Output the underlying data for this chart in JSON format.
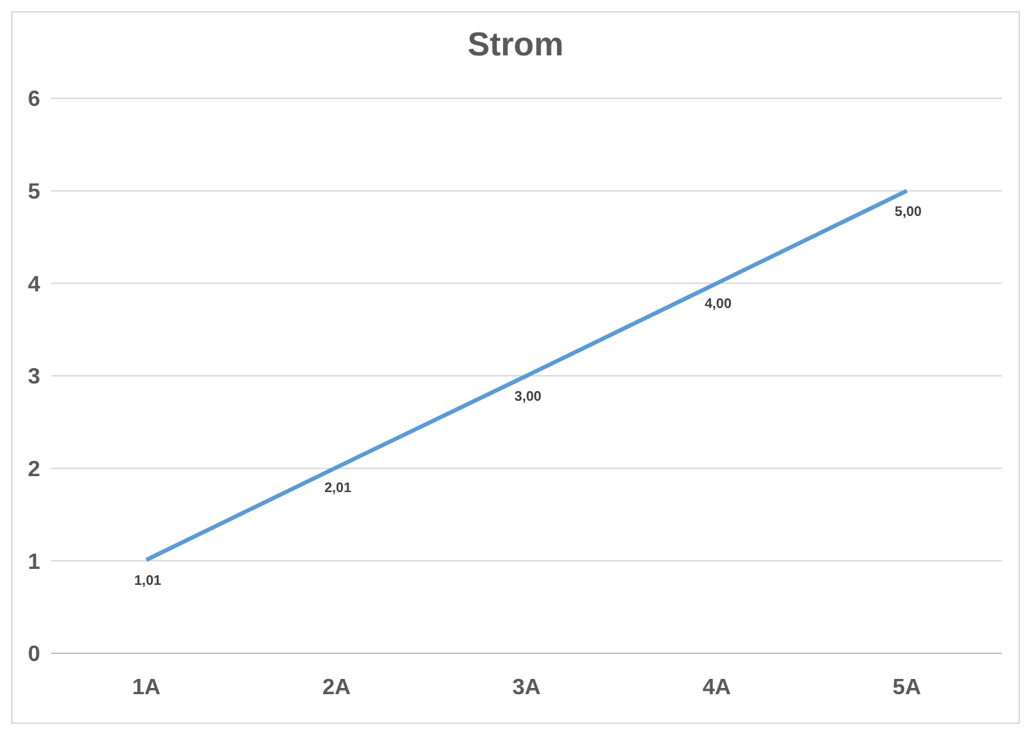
{
  "chart_data": {
    "type": "line",
    "title": "Strom",
    "categories": [
      "1A",
      "2A",
      "3A",
      "4A",
      "5A"
    ],
    "series": [
      {
        "color": "#5b9bd5",
        "values": [
          1.01,
          2.01,
          3.0,
          4.0,
          5.0
        ],
        "value_labels": [
          "1,01",
          "2,01",
          "3,00",
          "4,00",
          "5,00"
        ]
      }
    ],
    "ylim": [
      0,
      6
    ],
    "yticks": [
      0,
      1,
      2,
      3,
      4,
      5,
      6
    ],
    "grid": "y",
    "legend": false,
    "marker": "none",
    "line_style": "solid"
  }
}
